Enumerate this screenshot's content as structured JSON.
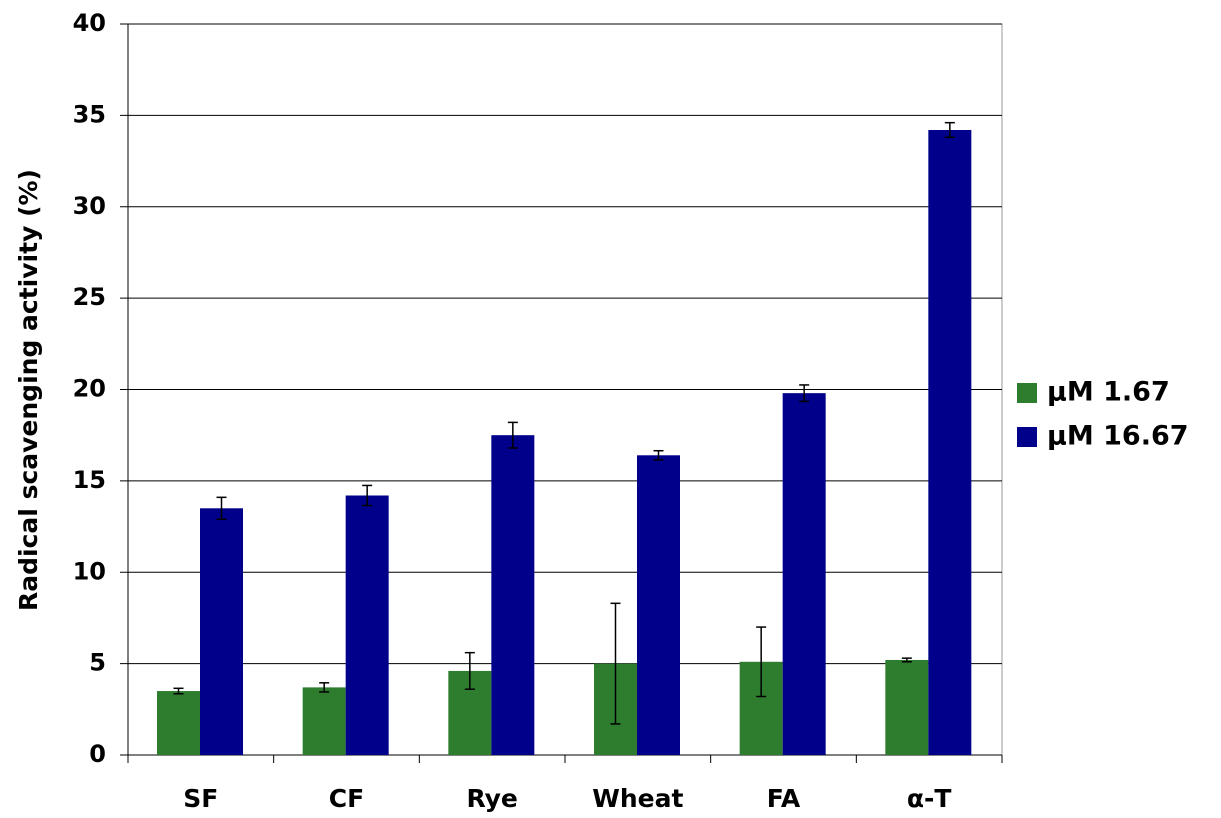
{
  "chart_data": {
    "type": "bar",
    "y_label": "Radical scavenging activity (%)",
    "categories": [
      "SF",
      "CF",
      "Rye",
      "Wheat",
      "FA",
      "α-T"
    ],
    "series": [
      {
        "name": "µM 1.67",
        "color": "#2e7d2e",
        "values": [
          3.5,
          3.7,
          4.6,
          5.0,
          5.1,
          5.2
        ],
        "errors": [
          0.15,
          0.25,
          1.0,
          3.3,
          1.9,
          0.1
        ]
      },
      {
        "name": "µM 16.67",
        "color": "#00008b",
        "values": [
          13.5,
          14.2,
          17.5,
          16.4,
          19.8,
          34.2
        ],
        "errors": [
          0.6,
          0.55,
          0.7,
          0.25,
          0.45,
          0.4
        ]
      }
    ],
    "ylim": [
      0,
      40
    ],
    "yticks": [
      0,
      5,
      10,
      15,
      20,
      25,
      30,
      35,
      40
    ],
    "grid": true,
    "legend": "right"
  }
}
